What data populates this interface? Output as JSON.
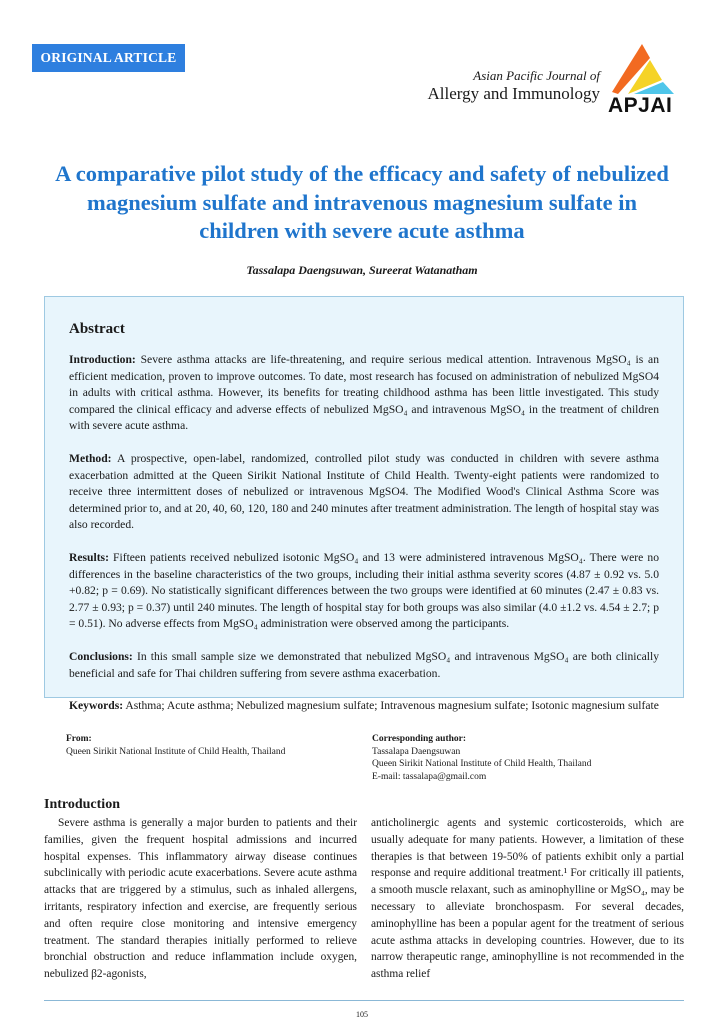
{
  "header": {
    "badge": "ORIGINAL ARTICLE",
    "journal_line1": "Asian Pacific Journal of",
    "journal_line2": "Allergy and Immunology",
    "logo_text": "APJAI",
    "colors": {
      "accent": "#2e7fdf",
      "title": "#1f75cc",
      "logo_orange": "#f26a21",
      "logo_yellow": "#f5d327",
      "logo_cyan": "#4fc6ea"
    }
  },
  "article": {
    "title": "A comparative pilot study of the efficacy and safety of nebulized magnesium sulfate and intravenous magnesium sulfate in children with severe acute asthma",
    "authors": "Tassalapa Daengsuwan, Sureerat Watanatham"
  },
  "abstract": {
    "heading": "Abstract",
    "sections": [
      {
        "label": "Introduction:",
        "text": " Severe asthma attacks are life-threatening, and require serious medical attention. Intravenous MgSO₄ is an efficient medication, proven to improve outcomes. To date, most research has focused on administration of nebulized MgSO4 in adults with critical asthma. However, its benefits for treating childhood asthma has been little investigated. This study compared the clinical efficacy and adverse effects of nebulized MgSO₄ and intravenous MgSO₄ in the treatment of children with severe acute asthma."
      },
      {
        "label": "Method:",
        "text": " A prospective, open-label, randomized, controlled pilot study was conducted in children with severe asthma exacerbation admitted at the Queen Sirikit National Institute of Child Health. Twenty-eight patients were randomized to receive three intermittent doses of nebulized or intravenous MgSO4. The Modified Wood's Clinical Asthma Score was determined prior to, and at 20, 40, 60, 120, 180 and 240 minutes after treatment administration. The length of hospital stay was also recorded."
      },
      {
        "label": "Results:",
        "text": " Fifteen patients received nebulized isotonic MgSO₄ and 13 were administered intravenous MgSO₄. There were no differences in the baseline characteristics of the two groups, including their initial asthma severity scores (4.87 ± 0.92 vs. 5.0 +0.82; p = 0.69). No statistically significant differences between the two groups were identified at 60 minutes (2.47 ± 0.83 vs. 2.77 ± 0.93; p = 0.37) until 240 minutes. The length of hospital stay for both groups was also similar (4.0 ±1.2 vs. 4.54 ± 2.7; p = 0.51). No adverse effects from MgSO₄ administration were observed among the participants."
      },
      {
        "label": "Conclusions:",
        "text": " In this small sample size we demonstrated that nebulized MgSO₄ and intravenous MgSO₄ are both clinically beneficial and safe for Thai children suffering from severe asthma exacerbation."
      },
      {
        "label": "Keywords:",
        "text": " Asthma; Acute asthma; Nebulized magnesium sulfate; Intravenous magnesium sulfate; Isotonic magnesium sulfate"
      }
    ]
  },
  "affiliations": {
    "from_label": "From:",
    "from_text": "Queen Sirikit National Institute of Child Health, Thailand",
    "corr_label": "Corresponding author:",
    "corr_name": "Tassalapa Daengsuwan",
    "corr_inst": "Queen Sirikit National Institute of Child Health, Thailand",
    "corr_email": "E-mail: tassalapa@gmail.com"
  },
  "introduction": {
    "heading": "Introduction",
    "col1": "Severe asthma is generally a major burden to patients and their families, given the frequent hospital admissions and incurred hospital expenses. This inflammatory airway disease continues subclinically with periodic acute exacerbations. Severe acute asthma attacks that are triggered by a stimulus, such as inhaled allergens, irritants, respiratory infection and exercise, are frequently serious and often require close monitoring and intensive emergency treatment. The standard therapies initially performed to relieve bronchial obstruction and reduce inflammation include oxygen, nebulized β2-agonists,",
    "col2": "anticholinergic agents and systemic corticosteroids, which are usually adequate for many patients. However, a limitation of these therapies is that between 19-50% of patients exhibit only a partial response and require additional treatment.¹ For critically ill patients, a smooth muscle relaxant, such as aminophylline or MgSO₄, may be necessary to alleviate bronchospasm. For several decades, aminophylline has been a popular agent for the treatment of serious acute asthma attacks in developing countries. However, due to its narrow therapeutic range, aminophylline is not recommended in the asthma relief"
  },
  "footer": {
    "page_number": "105"
  }
}
